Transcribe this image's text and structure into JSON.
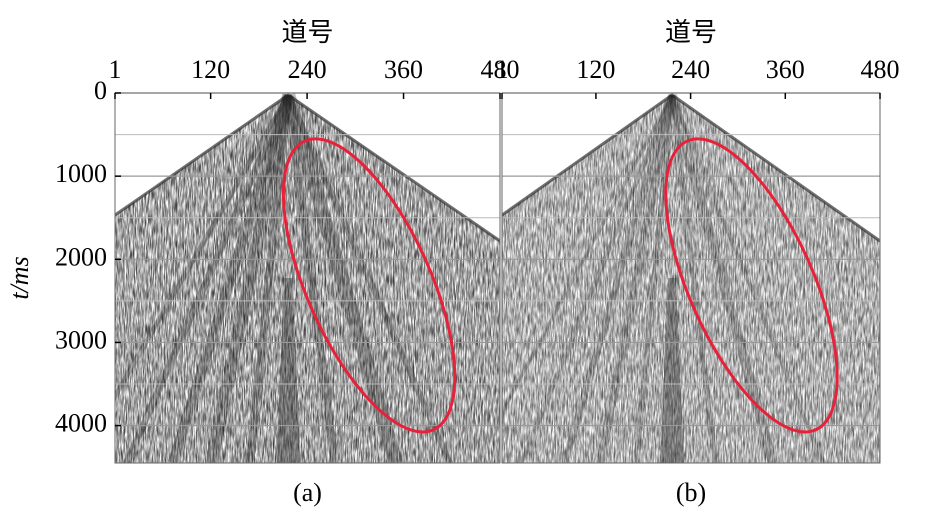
{
  "chart_data": [
    {
      "type": "seismic-gather",
      "xlabel": "道号",
      "xlim": [
        1,
        480
      ],
      "xticks": [
        1,
        120,
        240,
        360,
        480
      ],
      "ylabel": "t/ms",
      "ylim": [
        0,
        4450
      ],
      "yticks": [
        0,
        1000,
        2000,
        3000,
        4000
      ],
      "caption": "(a)"
    },
    {
      "type": "seismic-gather",
      "xlabel": "道号",
      "xlim": [
        1,
        480
      ],
      "xticks": [
        1,
        120,
        240,
        360,
        480
      ],
      "ylim": [
        0,
        4450
      ],
      "caption": "(b)"
    }
  ]
}
